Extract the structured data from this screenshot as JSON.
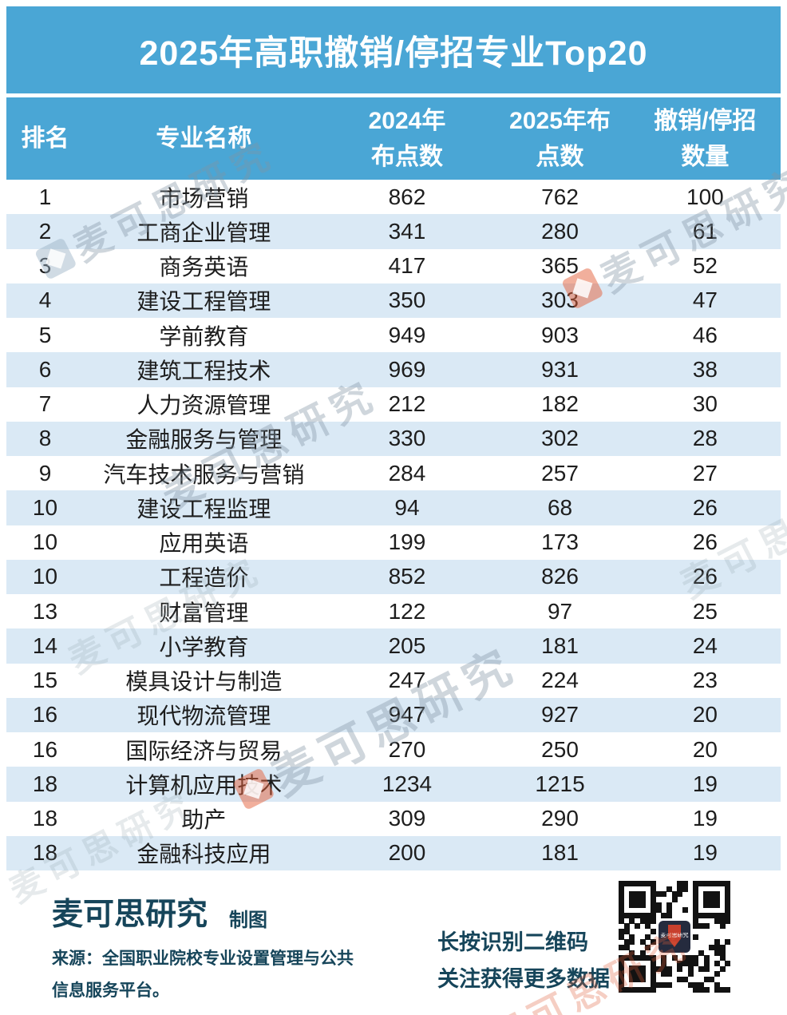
{
  "title": "2025年高职撤销/停招专业Top20",
  "colors": {
    "band_blue": "#4AA6D5",
    "row_alt_blue": "#DAE9F5",
    "header_text": "#FFFFFF",
    "footer_text": "#16455A",
    "watermark_gray": "#8094A2",
    "watermark_orange": "#E4603A"
  },
  "table": {
    "headers": [
      "排名",
      "专业名称",
      "2024年\n布点数",
      "2025年布\n点数",
      "撤销/停招\n数量"
    ],
    "rows": [
      {
        "rank": "1",
        "major": "市场营销",
        "y2024": "862",
        "y2025": "762",
        "removed": "100"
      },
      {
        "rank": "2",
        "major": "工商企业管理",
        "y2024": "341",
        "y2025": "280",
        "removed": "61"
      },
      {
        "rank": "3",
        "major": "商务英语",
        "y2024": "417",
        "y2025": "365",
        "removed": "52"
      },
      {
        "rank": "4",
        "major": "建设工程管理",
        "y2024": "350",
        "y2025": "303",
        "removed": "47"
      },
      {
        "rank": "5",
        "major": "学前教育",
        "y2024": "949",
        "y2025": "903",
        "removed": "46"
      },
      {
        "rank": "6",
        "major": "建筑工程技术",
        "y2024": "969",
        "y2025": "931",
        "removed": "38"
      },
      {
        "rank": "7",
        "major": "人力资源管理",
        "y2024": "212",
        "y2025": "182",
        "removed": "30"
      },
      {
        "rank": "8",
        "major": "金融服务与管理",
        "y2024": "330",
        "y2025": "302",
        "removed": "28"
      },
      {
        "rank": "9",
        "major": "汽车技术服务与营销",
        "y2024": "284",
        "y2025": "257",
        "removed": "27"
      },
      {
        "rank": "10",
        "major": "建设工程监理",
        "y2024": "94",
        "y2025": "68",
        "removed": "26"
      },
      {
        "rank": "10",
        "major": "应用英语",
        "y2024": "199",
        "y2025": "173",
        "removed": "26"
      },
      {
        "rank": "10",
        "major": "工程造价",
        "y2024": "852",
        "y2025": "826",
        "removed": "26"
      },
      {
        "rank": "13",
        "major": "财富管理",
        "y2024": "122",
        "y2025": "97",
        "removed": "25"
      },
      {
        "rank": "14",
        "major": "小学教育",
        "y2024": "205",
        "y2025": "181",
        "removed": "24"
      },
      {
        "rank": "15",
        "major": "模具设计与制造",
        "y2024": "247",
        "y2025": "224",
        "removed": "23"
      },
      {
        "rank": "16",
        "major": "现代物流管理",
        "y2024": "947",
        "y2025": "927",
        "removed": "20"
      },
      {
        "rank": "16",
        "major": "国际经济与贸易",
        "y2024": "270",
        "y2025": "250",
        "removed": "20"
      },
      {
        "rank": "18",
        "major": "计算机应用技术",
        "y2024": "1234",
        "y2025": "1215",
        "removed": "19"
      },
      {
        "rank": "18",
        "major": "助产",
        "y2024": "309",
        "y2025": "290",
        "removed": "19"
      },
      {
        "rank": "18",
        "major": "金融科技应用",
        "y2024": "200",
        "y2025": "181",
        "removed": "19"
      }
    ]
  },
  "chart_data": {
    "type": "table",
    "title": "2025年高职撤销/停招专业Top20",
    "columns": [
      "排名",
      "专业名称",
      "2024年布点数",
      "2025年布点数",
      "撤销/停招数量"
    ],
    "rows": [
      [
        1,
        "市场营销",
        862,
        762,
        100
      ],
      [
        2,
        "工商企业管理",
        341,
        280,
        61
      ],
      [
        3,
        "商务英语",
        417,
        365,
        52
      ],
      [
        4,
        "建设工程管理",
        350,
        303,
        47
      ],
      [
        5,
        "学前教育",
        949,
        903,
        46
      ],
      [
        6,
        "建筑工程技术",
        969,
        931,
        38
      ],
      [
        7,
        "人力资源管理",
        212,
        182,
        30
      ],
      [
        8,
        "金融服务与管理",
        330,
        302,
        28
      ],
      [
        9,
        "汽车技术服务与营销",
        284,
        257,
        27
      ],
      [
        10,
        "建设工程监理",
        94,
        68,
        26
      ],
      [
        10,
        "应用英语",
        199,
        173,
        26
      ],
      [
        10,
        "工程造价",
        852,
        826,
        26
      ],
      [
        13,
        "财富管理",
        122,
        97,
        25
      ],
      [
        14,
        "小学教育",
        205,
        181,
        24
      ],
      [
        15,
        "模具设计与制造",
        247,
        224,
        23
      ],
      [
        16,
        "现代物流管理",
        947,
        927,
        20
      ],
      [
        16,
        "国际经济与贸易",
        270,
        250,
        20
      ],
      [
        18,
        "计算机应用技术",
        1234,
        1215,
        19
      ],
      [
        18,
        "助产",
        309,
        290,
        19
      ],
      [
        18,
        "金融科技应用",
        200,
        181,
        19
      ]
    ]
  },
  "footer": {
    "brand": "麦可思研究",
    "brand_suffix": "制图",
    "source_line1": "来源：全国职业院校专业设置管理与公共",
    "source_line2": "信息服务平台。",
    "qr_hint_line1": "长按识别二维码",
    "qr_hint_line2": "关注获得更多数据"
  },
  "watermark": "麦可思研究"
}
